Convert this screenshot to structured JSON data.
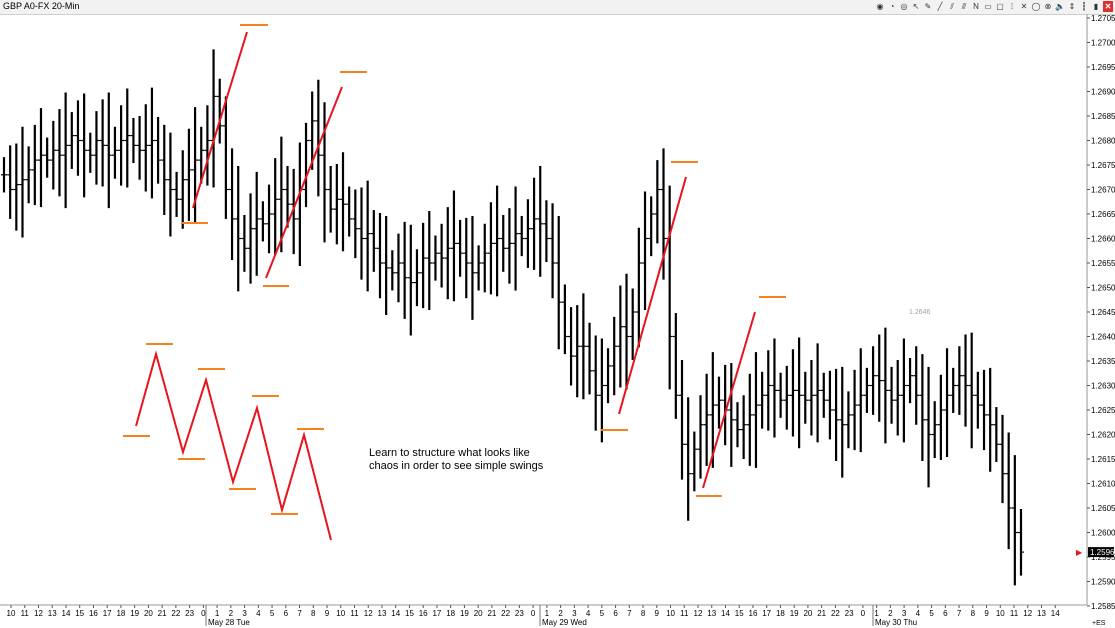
{
  "window": {
    "title": "GBP A0-FX 20-Min"
  },
  "toolbar": {
    "icons": [
      "globe-icon",
      "clock-icon",
      "target-icon",
      "cursor-icon",
      "pencil-icon",
      "trendline-icon",
      "channel-icon",
      "parallel-lines-icon",
      "text-n-icon",
      "highlight-icon",
      "rectangle-icon",
      "vertical-line-icon",
      "cross-icon",
      "ellipse-icon",
      "gann-icon",
      "speaker-icon",
      "up-down-icon",
      "bars-icon",
      "candles-icon",
      "close-icon"
    ],
    "glyphs": [
      "◉",
      "◔",
      "◎",
      "↖",
      "✎",
      "╱",
      "⫽",
      "⫻",
      "N",
      "▭",
      "▢",
      "⁞",
      "✕",
      "◯",
      "⊗",
      "🔈",
      "⇕",
      "┇",
      "▮",
      "✕"
    ]
  },
  "price_axis": {
    "labels": [
      "1.2705",
      "1.2700",
      "1.2695",
      "1.2690",
      "1.2685",
      "1.2680",
      "1.2675",
      "1.2670",
      "1.2665",
      "1.2660",
      "1.2655",
      "1.2650",
      "1.2645",
      "1.2640",
      "1.2635",
      "1.2630",
      "1.2625",
      "1.2620",
      "1.2615",
      "1.2610",
      "1.2605",
      "1.2600",
      "1.2595",
      "1.2590",
      "1.2585"
    ],
    "current_price": "1.2596",
    "current_marker": "▶"
  },
  "time_axis": {
    "hours": [
      "10",
      "11",
      "12",
      "13",
      "14",
      "15",
      "16",
      "17",
      "18",
      "19",
      "20",
      "21",
      "22",
      "23",
      "0",
      "1",
      "2",
      "3",
      "4",
      "5",
      "6",
      "7",
      "8",
      "9",
      "10",
      "11",
      "12",
      "13",
      "14",
      "15",
      "16",
      "17",
      "18",
      "19",
      "20",
      "21",
      "22",
      "23",
      "0",
      "1",
      "2",
      "3",
      "4",
      "5",
      "6",
      "7",
      "8",
      "9",
      "10",
      "11",
      "12",
      "13",
      "14",
      "15",
      "16",
      "17",
      "18",
      "19",
      "20",
      "21",
      "22",
      "23",
      "0",
      "1",
      "2",
      "3",
      "4",
      "5",
      "6",
      "7",
      "8",
      "9",
      "10",
      "11",
      "12",
      "13",
      "14"
    ],
    "dates": [
      "May 28 Tue",
      "May 29 Wed",
      "May 30 Thu"
    ],
    "corner_label": "+ES"
  },
  "annotations": {
    "note_line1": "Learn to structure what looks like",
    "note_line2": "chaos in order to see simple swings",
    "price_tag": "1.2646"
  },
  "colors": {
    "bars": "#000000",
    "swing_lines": "#e8141c",
    "swing_levels": "#f5821f",
    "current_price_marker": "#e8141c"
  },
  "chart_data": {
    "type": "ohlc",
    "series": [
      {
        "closes": [
          1.2673,
          1.267,
          1.2671,
          1.2672,
          1.2674,
          1.2676,
          1.2677,
          1.2676,
          1.2678,
          1.2677,
          1.2679,
          1.2681,
          1.268,
          1.2678,
          1.2677,
          1.268,
          1.2679,
          1.2677,
          1.2678,
          1.268,
          1.2681,
          1.2679,
          1.2678,
          1.2679,
          1.268,
          1.2676,
          1.2672,
          1.267,
          1.2668,
          1.2672,
          1.2674,
          1.2676,
          1.2678,
          1.268,
          1.2689,
          1.2683,
          1.267,
          1.2664,
          1.266,
          1.2658,
          1.2662,
          1.2664,
          1.2663,
          1.2665,
          1.2668,
          1.267,
          1.2667,
          1.2664,
          1.267,
          1.268,
          1.2684,
          1.2677,
          1.267,
          1.2666,
          1.2668,
          1.2667,
          1.2664,
          1.2662,
          1.266,
          1.2661,
          1.2658,
          1.2655,
          1.2654,
          1.2653,
          1.2655,
          1.2652,
          1.2651,
          1.2653,
          1.2656,
          1.2655,
          1.2657,
          1.2656,
          1.2658,
          1.2659,
          1.2657,
          1.2655,
          1.2653,
          1.2655,
          1.2657,
          1.2659,
          1.266,
          1.2658,
          1.2659,
          1.2661,
          1.266,
          1.2662,
          1.2664,
          1.2663,
          1.266,
          1.2655,
          1.2647,
          1.264,
          1.2636,
          1.2638,
          1.2638,
          1.2633,
          1.2628,
          1.263,
          1.2634,
          1.2638,
          1.2642,
          1.264,
          1.2645,
          1.2655,
          1.266,
          1.2665,
          1.267,
          1.266,
          1.264,
          1.2628,
          1.2618,
          1.2612,
          1.2617,
          1.2622,
          1.2624,
          1.2626,
          1.2627,
          1.2625,
          1.2623,
          1.2621,
          1.2622,
          1.2624,
          1.2626,
          1.2628,
          1.263,
          1.2629,
          1.2627,
          1.2628,
          1.2629,
          1.2628,
          1.2627,
          1.2628,
          1.2629,
          1.2627,
          1.2625,
          1.2623,
          1.2622,
          1.2624,
          1.2626,
          1.2628,
          1.263,
          1.2632,
          1.2631,
          1.2629,
          1.2627,
          1.2628,
          1.263,
          1.2632,
          1.2628,
          1.2623,
          1.262,
          1.2622,
          1.2625,
          1.2628,
          1.263,
          1.2632,
          1.263,
          1.2628,
          1.2626,
          1.2624,
          1.2622,
          1.2618,
          1.2612,
          1.2605,
          1.26,
          1.2596
        ]
      }
    ]
  }
}
